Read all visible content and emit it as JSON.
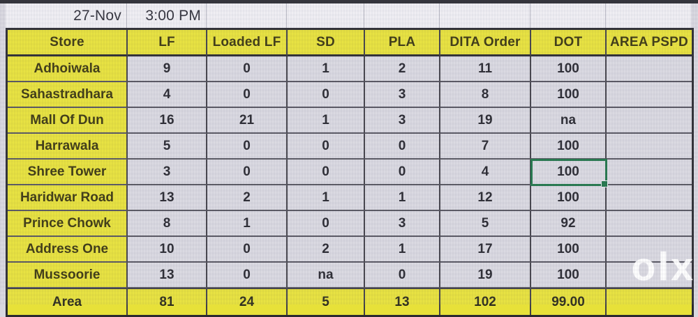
{
  "header": {
    "date": "27-Nov",
    "time": "3:00 PM"
  },
  "table": {
    "columns": [
      "Store",
      "LF",
      "Loaded LF",
      "SD",
      "PLA",
      "DITA Order",
      "DOT",
      "AREA PSPD"
    ],
    "rows": [
      {
        "store": "Adhoiwala",
        "values": [
          "9",
          "0",
          "1",
          "2",
          "11",
          "100",
          ""
        ]
      },
      {
        "store": "Sahastradhara",
        "values": [
          "4",
          "0",
          "0",
          "3",
          "8",
          "100",
          ""
        ]
      },
      {
        "store": "Mall Of Dun",
        "values": [
          "16",
          "21",
          "1",
          "3",
          "19",
          "na",
          ""
        ]
      },
      {
        "store": "Harrawala",
        "values": [
          "5",
          "0",
          "0",
          "0",
          "7",
          "100",
          ""
        ]
      },
      {
        "store": "Shree Tower",
        "values": [
          "3",
          "0",
          "0",
          "0",
          "4",
          "100",
          ""
        ]
      },
      {
        "store": "Haridwar Road",
        "values": [
          "13",
          "2",
          "1",
          "1",
          "12",
          "100",
          ""
        ]
      },
      {
        "store": "Prince Chowk",
        "values": [
          "8",
          "1",
          "0",
          "3",
          "5",
          "92",
          ""
        ]
      },
      {
        "store": "Address One",
        "values": [
          "10",
          "0",
          "2",
          "1",
          "17",
          "100",
          ""
        ]
      },
      {
        "store": "Mussoorie",
        "values": [
          "13",
          "0",
          "na",
          "0",
          "19",
          "100",
          ""
        ]
      }
    ],
    "total_row": {
      "store": "Area",
      "values": [
        "81",
        "24",
        "5",
        "13",
        "102",
        "99.00",
        ""
      ]
    }
  },
  "selection": {
    "row_store": "Shree Tower",
    "value_index": 5,
    "border_color": "#1f7448"
  },
  "watermark": {
    "text": "olx"
  },
  "colors": {
    "cell_yellow": "#e7e139",
    "cell_gray": "#d9d8e0",
    "grid_dark": "#2a2a30",
    "selection_green": "#1f7448",
    "date_row_bg": "#efeef3"
  }
}
